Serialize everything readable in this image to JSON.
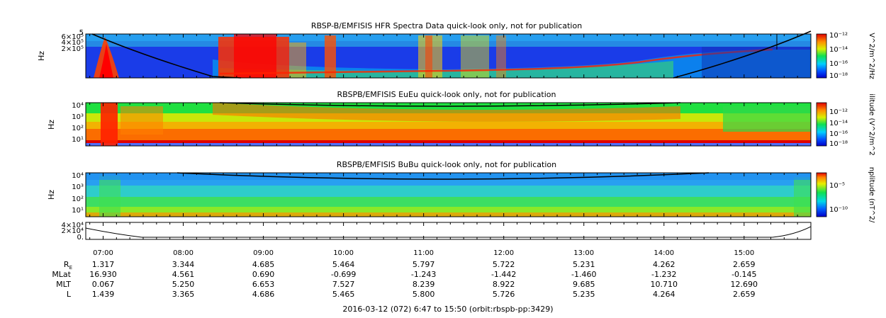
{
  "chart_data": [
    {
      "type": "heatmap",
      "title": "RBSP-B/EMFISIS  HFR Spectra Data quick-look only, not for publication",
      "ylabel": "Hz",
      "y_ticks": [
        "6×10⁵",
        "4×10⁵",
        "2×10⁵"
      ],
      "y_tick_extra": "5",
      "colorbar_label": "V^2/m^2/Hz",
      "colorbar_ticks": [
        "10⁻¹²",
        "10⁻¹⁴",
        "10⁻¹⁶",
        "10⁻¹⁸"
      ]
    },
    {
      "type": "heatmap",
      "title": "RBSPB/EMFISIS  EuEu quick-look only, not for publication",
      "ylabel": "Hz",
      "y_ticks": [
        "10⁴",
        "10³",
        "10²",
        "10¹"
      ],
      "colorbar_label": "ilitude (V^2/m^2",
      "colorbar_ticks": [
        "10⁻¹²",
        "10⁻¹⁴",
        "10⁻¹⁶",
        "10⁻¹⁸"
      ]
    },
    {
      "type": "heatmap",
      "title": "RBSPB/EMFISIS  BuBu quick-look only, not for publication",
      "ylabel": "Hz",
      "y_ticks": [
        "10⁴",
        "10³",
        "10²",
        "10¹"
      ],
      "colorbar_label": "nplitude (nT^2/",
      "colorbar_ticks": [
        "10⁻⁵",
        "10⁻¹⁰"
      ]
    },
    {
      "type": "line",
      "y_ticks": [
        "4×10⁴",
        "2×10⁴",
        "0."
      ],
      "ylim": [
        0,
        40000
      ]
    }
  ],
  "x_axis": {
    "tick_labels": [
      "07:00",
      "08:00",
      "09:00",
      "10:00",
      "11:00",
      "12:00",
      "13:00",
      "14:00",
      "15:00"
    ]
  },
  "ephemeris": {
    "rows": [
      {
        "label": "R",
        "subscript": "E",
        "values": [
          "1.317",
          "3.344",
          "4.685",
          "5.464",
          "5.797",
          "5.722",
          "5.231",
          "4.262",
          "2.659"
        ]
      },
      {
        "label": "MLat",
        "subscript": "",
        "values": [
          "16.930",
          "4.561",
          "0.690",
          "-0.699",
          "-1.243",
          "-1.442",
          "-1.460",
          "-1.232",
          "-0.145"
        ]
      },
      {
        "label": "MLT",
        "subscript": "",
        "values": [
          "0.067",
          "5.250",
          "6.653",
          "7.527",
          "8.239",
          "8.922",
          "9.685",
          "10.710",
          "12.690"
        ]
      },
      {
        "label": "L",
        "subscript": "",
        "values": [
          "1.439",
          "3.365",
          "4.686",
          "5.465",
          "5.800",
          "5.726",
          "5.235",
          "4.264",
          "2.659"
        ]
      }
    ]
  },
  "footer": "2016-03-12 (072) 6:47 to 15:50 (orbit:rbspb-pp:3429)"
}
